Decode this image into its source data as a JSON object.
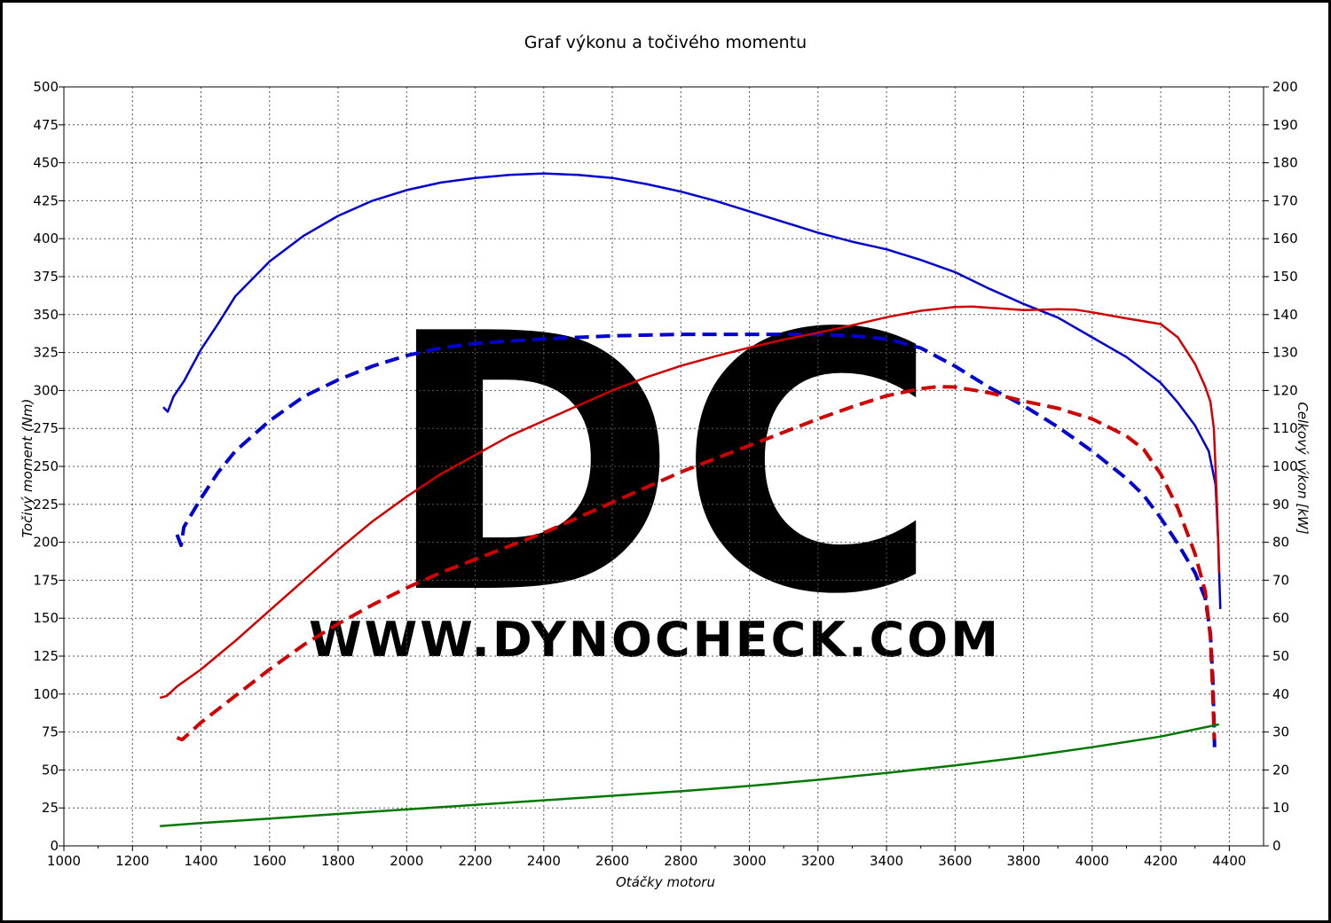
{
  "chart_data": {
    "type": "line",
    "title": "Graf výkonu a točivého momentu",
    "xlabel": "Otáčky motoru",
    "ylabel_left": "Točivý moment (Nm)",
    "ylabel_right": "Celkový výkon [kW]",
    "xlim": [
      1000,
      4500
    ],
    "ylim_left": [
      0,
      500
    ],
    "ylim_right": [
      0,
      200
    ],
    "x_ticks": [
      1000,
      1200,
      1400,
      1600,
      1800,
      2000,
      2200,
      2400,
      2600,
      2800,
      3000,
      3200,
      3400,
      3600,
      3800,
      4000,
      4200,
      4400
    ],
    "y_ticks_left": [
      0,
      25,
      50,
      75,
      100,
      125,
      150,
      175,
      200,
      225,
      250,
      275,
      300,
      325,
      350,
      375,
      400,
      425,
      450,
      475,
      500
    ],
    "y_ticks_right": [
      0,
      10,
      20,
      30,
      40,
      50,
      60,
      70,
      80,
      90,
      100,
      110,
      120,
      130,
      140,
      150,
      160,
      170,
      180,
      190,
      200
    ],
    "grid": true,
    "legend": "none",
    "watermark": {
      "letters": "DC",
      "url": "WWW.DYNOCHECK.COM"
    },
    "series": [
      {
        "axis": "left",
        "color": "#0000d0",
        "style": "solid",
        "points": [
          [
            1290,
            289
          ],
          [
            1303,
            286
          ],
          [
            1320,
            296
          ],
          [
            1350,
            306
          ],
          [
            1400,
            327
          ],
          [
            1450,
            344
          ],
          [
            1500,
            362
          ],
          [
            1600,
            385
          ],
          [
            1700,
            402
          ],
          [
            1800,
            415
          ],
          [
            1900,
            425
          ],
          [
            2000,
            432
          ],
          [
            2100,
            437
          ],
          [
            2200,
            440
          ],
          [
            2300,
            442
          ],
          [
            2400,
            443
          ],
          [
            2500,
            442
          ],
          [
            2600,
            440
          ],
          [
            2700,
            436
          ],
          [
            2800,
            431
          ],
          [
            2900,
            425
          ],
          [
            3000,
            418
          ],
          [
            3100,
            411
          ],
          [
            3200,
            404
          ],
          [
            3300,
            398
          ],
          [
            3400,
            393
          ],
          [
            3500,
            386
          ],
          [
            3600,
            378
          ],
          [
            3700,
            367
          ],
          [
            3800,
            357
          ],
          [
            3900,
            348
          ],
          [
            4000,
            335
          ],
          [
            4100,
            322
          ],
          [
            4200,
            305
          ],
          [
            4250,
            292
          ],
          [
            4300,
            277
          ],
          [
            4340,
            260
          ],
          [
            4360,
            238
          ],
          [
            4368,
            200
          ],
          [
            4372,
            168
          ],
          [
            4374,
            156
          ]
        ]
      },
      {
        "axis": "left",
        "color": "#0000d0",
        "style": "dashed",
        "points": [
          [
            1330,
            205
          ],
          [
            1342,
            198
          ],
          [
            1350,
            210
          ],
          [
            1400,
            229
          ],
          [
            1450,
            246
          ],
          [
            1500,
            260
          ],
          [
            1600,
            280
          ],
          [
            1700,
            296
          ],
          [
            1800,
            307
          ],
          [
            1900,
            316
          ],
          [
            2000,
            323
          ],
          [
            2100,
            328
          ],
          [
            2200,
            331
          ],
          [
            2400,
            334
          ],
          [
            2600,
            336
          ],
          [
            2800,
            337
          ],
          [
            3000,
            337
          ],
          [
            3200,
            337
          ],
          [
            3300,
            336
          ],
          [
            3400,
            334
          ],
          [
            3500,
            328
          ],
          [
            3600,
            316
          ],
          [
            3700,
            302
          ],
          [
            3800,
            290
          ],
          [
            3900,
            276
          ],
          [
            4000,
            260
          ],
          [
            4100,
            242
          ],
          [
            4150,
            231
          ],
          [
            4200,
            216
          ],
          [
            4250,
            199
          ],
          [
            4300,
            180
          ],
          [
            4330,
            163
          ],
          [
            4345,
            140
          ],
          [
            4352,
            110
          ],
          [
            4355,
            85
          ],
          [
            4357,
            65
          ]
        ]
      },
      {
        "axis": "right",
        "color": "#d00000",
        "style": "solid",
        "points": [
          [
            1280,
            39
          ],
          [
            1300,
            39.5
          ],
          [
            1330,
            42
          ],
          [
            1400,
            46.5
          ],
          [
            1500,
            54
          ],
          [
            1600,
            62
          ],
          [
            1700,
            70
          ],
          [
            1800,
            78
          ],
          [
            1900,
            85.5
          ],
          [
            2000,
            92
          ],
          [
            2100,
            98
          ],
          [
            2200,
            103
          ],
          [
            2300,
            108
          ],
          [
            2400,
            112
          ],
          [
            2500,
            116
          ],
          [
            2600,
            120
          ],
          [
            2700,
            123.5
          ],
          [
            2800,
            126.5
          ],
          [
            2900,
            129
          ],
          [
            3000,
            131.3
          ],
          [
            3100,
            133.4
          ],
          [
            3200,
            135.2
          ],
          [
            3300,
            137.2
          ],
          [
            3400,
            139.3
          ],
          [
            3500,
            141
          ],
          [
            3600,
            142
          ],
          [
            3650,
            142.1
          ],
          [
            3700,
            141.8
          ],
          [
            3800,
            141.2
          ],
          [
            3900,
            141.4
          ],
          [
            3950,
            141.3
          ],
          [
            4000,
            140.6
          ],
          [
            4100,
            139
          ],
          [
            4200,
            137.5
          ],
          [
            4250,
            134
          ],
          [
            4300,
            127
          ],
          [
            4330,
            121
          ],
          [
            4345,
            117
          ],
          [
            4355,
            110
          ],
          [
            4362,
            95
          ],
          [
            4367,
            82
          ],
          [
            4370,
            72
          ]
        ]
      },
      {
        "axis": "right",
        "color": "#d00000",
        "style": "dashed",
        "points": [
          [
            1330,
            28.5
          ],
          [
            1345,
            28
          ],
          [
            1400,
            32.5
          ],
          [
            1500,
            39.5
          ],
          [
            1600,
            46.5
          ],
          [
            1700,
            53
          ],
          [
            1800,
            58.5
          ],
          [
            1900,
            63.5
          ],
          [
            2000,
            68
          ],
          [
            2100,
            72
          ],
          [
            2200,
            75.5
          ],
          [
            2300,
            79
          ],
          [
            2400,
            82.5
          ],
          [
            2500,
            86.5
          ],
          [
            2600,
            90.5
          ],
          [
            2700,
            94.5
          ],
          [
            2800,
            98.5
          ],
          [
            2900,
            102
          ],
          [
            3000,
            105.5
          ],
          [
            3100,
            109
          ],
          [
            3200,
            112.5
          ],
          [
            3300,
            115.7
          ],
          [
            3400,
            118.6
          ],
          [
            3500,
            120.5
          ],
          [
            3550,
            121
          ],
          [
            3600,
            120.9
          ],
          [
            3700,
            119.4
          ],
          [
            3800,
            117.2
          ],
          [
            3900,
            115.3
          ],
          [
            4000,
            112.5
          ],
          [
            4100,
            108
          ],
          [
            4150,
            104.5
          ],
          [
            4200,
            98
          ],
          [
            4250,
            89
          ],
          [
            4300,
            77
          ],
          [
            4330,
            67
          ],
          [
            4345,
            55
          ],
          [
            4352,
            40
          ],
          [
            4356,
            28
          ]
        ]
      },
      {
        "axis": "left",
        "color": "#007800",
        "style": "solid",
        "points": [
          [
            1280,
            13
          ],
          [
            1400,
            15
          ],
          [
            1600,
            18
          ],
          [
            1800,
            21
          ],
          [
            2000,
            24
          ],
          [
            2200,
            27
          ],
          [
            2400,
            30
          ],
          [
            2600,
            33
          ],
          [
            2800,
            36
          ],
          [
            3000,
            39.5
          ],
          [
            3200,
            43.5
          ],
          [
            3400,
            48
          ],
          [
            3600,
            53
          ],
          [
            3800,
            58.5
          ],
          [
            4000,
            65
          ],
          [
            4200,
            72
          ],
          [
            4370,
            80
          ]
        ]
      }
    ]
  }
}
